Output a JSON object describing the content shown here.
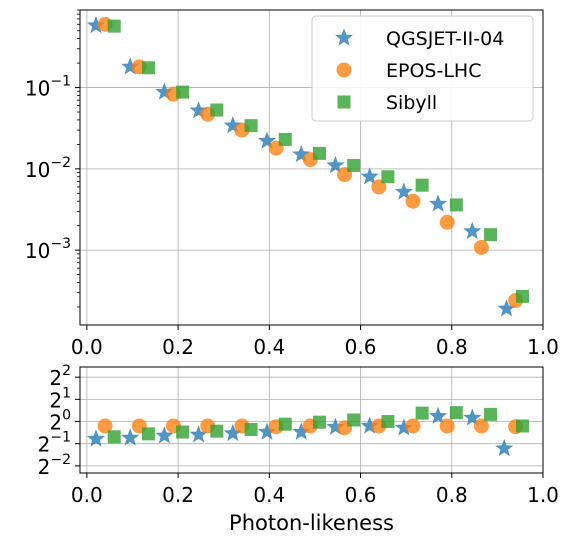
{
  "chart_data": [
    {
      "type": "scatter",
      "yscale": "log",
      "xlim": [
        -0.015,
        1.0
      ],
      "ylim": [
        0.00012,
        0.9
      ],
      "grid": true,
      "legend_position": "top-right",
      "xticks": [
        "0.0",
        "0.2",
        "0.4",
        "0.6",
        "0.8",
        "1.0"
      ],
      "yticks": [
        {
          "value": 0.1,
          "base": "10",
          "exp": "−1"
        },
        {
          "value": 0.01,
          "base": "10",
          "exp": "−2"
        },
        {
          "value": 0.001,
          "base": "10",
          "exp": "−3"
        }
      ],
      "series": [
        {
          "name": "QGSJET-II-04",
          "marker": "star",
          "color": "#1f77b4",
          "x": [
            0.02,
            0.095,
            0.17,
            0.245,
            0.32,
            0.395,
            0.47,
            0.545,
            0.62,
            0.695,
            0.77,
            0.845,
            0.92
          ],
          "y": [
            0.58,
            0.18,
            0.088,
            0.052,
            0.034,
            0.022,
            0.015,
            0.011,
            0.008,
            0.0052,
            0.0037,
            0.0017,
            0.00019
          ]
        },
        {
          "name": "EPOS-LHC",
          "marker": "circle",
          "color": "#ff7f0e",
          "x": [
            0.04,
            0.115,
            0.19,
            0.265,
            0.34,
            0.415,
            0.49,
            0.565,
            0.64,
            0.715,
            0.79,
            0.865,
            0.94
          ],
          "y": [
            0.6,
            0.18,
            0.083,
            0.047,
            0.03,
            0.018,
            0.013,
            0.0085,
            0.006,
            0.004,
            0.0022,
            0.00108,
            0.00024
          ]
        },
        {
          "name": "Sibyll",
          "marker": "square",
          "color": "#2ca02c",
          "x": [
            0.06,
            0.135,
            0.21,
            0.285,
            0.36,
            0.435,
            0.51,
            0.585,
            0.66,
            0.735,
            0.81,
            0.885,
            0.955
          ],
          "y": [
            0.57,
            0.175,
            0.088,
            0.053,
            0.034,
            0.023,
            0.0155,
            0.011,
            0.008,
            0.0063,
            0.0036,
            0.00155,
            0.00027
          ]
        }
      ]
    },
    {
      "type": "scatter",
      "yscale": "log2",
      "xlim": [
        -0.015,
        1.0
      ],
      "ylim": [
        0.2,
        5.5
      ],
      "grid": true,
      "xlabel": "Photon-likeness",
      "xticks": [
        "0.0",
        "0.2",
        "0.4",
        "0.6",
        "0.8",
        "1.0"
      ],
      "yticks": [
        {
          "value": 4,
          "base": "2",
          "exp": "2"
        },
        {
          "value": 2,
          "base": "2",
          "exp": "1"
        },
        {
          "value": 1,
          "base": "2",
          "exp": "0"
        },
        {
          "value": 0.5,
          "base": "2",
          "exp": "−1"
        },
        {
          "value": 0.25,
          "base": "2",
          "exp": "−2"
        }
      ],
      "series": [
        {
          "name": "QGSJET-II-04",
          "marker": "star",
          "color": "#1f77b4",
          "x": [
            0.02,
            0.095,
            0.17,
            0.245,
            0.32,
            0.395,
            0.47,
            0.545,
            0.62,
            0.695,
            0.77,
            0.845,
            0.915
          ],
          "y": [
            0.58,
            0.6,
            0.64,
            0.66,
            0.69,
            0.72,
            0.72,
            0.84,
            0.87,
            0.82,
            1.18,
            1.12,
            0.43
          ]
        },
        {
          "name": "EPOS-LHC",
          "marker": "circle",
          "color": "#ff7f0e",
          "x": [
            0.04,
            0.115,
            0.19,
            0.265,
            0.34,
            0.415,
            0.49,
            0.565,
            0.64,
            0.715,
            0.79,
            0.865,
            0.94
          ],
          "y": [
            0.87,
            0.87,
            0.87,
            0.87,
            0.87,
            0.85,
            0.87,
            0.82,
            0.87,
            0.87,
            0.87,
            0.87,
            0.85
          ]
        },
        {
          "name": "Sibyll",
          "marker": "square",
          "color": "#2ca02c",
          "x": [
            0.06,
            0.135,
            0.21,
            0.285,
            0.36,
            0.435,
            0.51,
            0.585,
            0.66,
            0.735,
            0.81,
            0.885,
            0.955
          ],
          "y": [
            0.62,
            0.68,
            0.72,
            0.74,
            0.78,
            0.92,
            0.98,
            1.05,
            1.0,
            1.3,
            1.32,
            1.25,
            0.87
          ]
        }
      ]
    }
  ]
}
